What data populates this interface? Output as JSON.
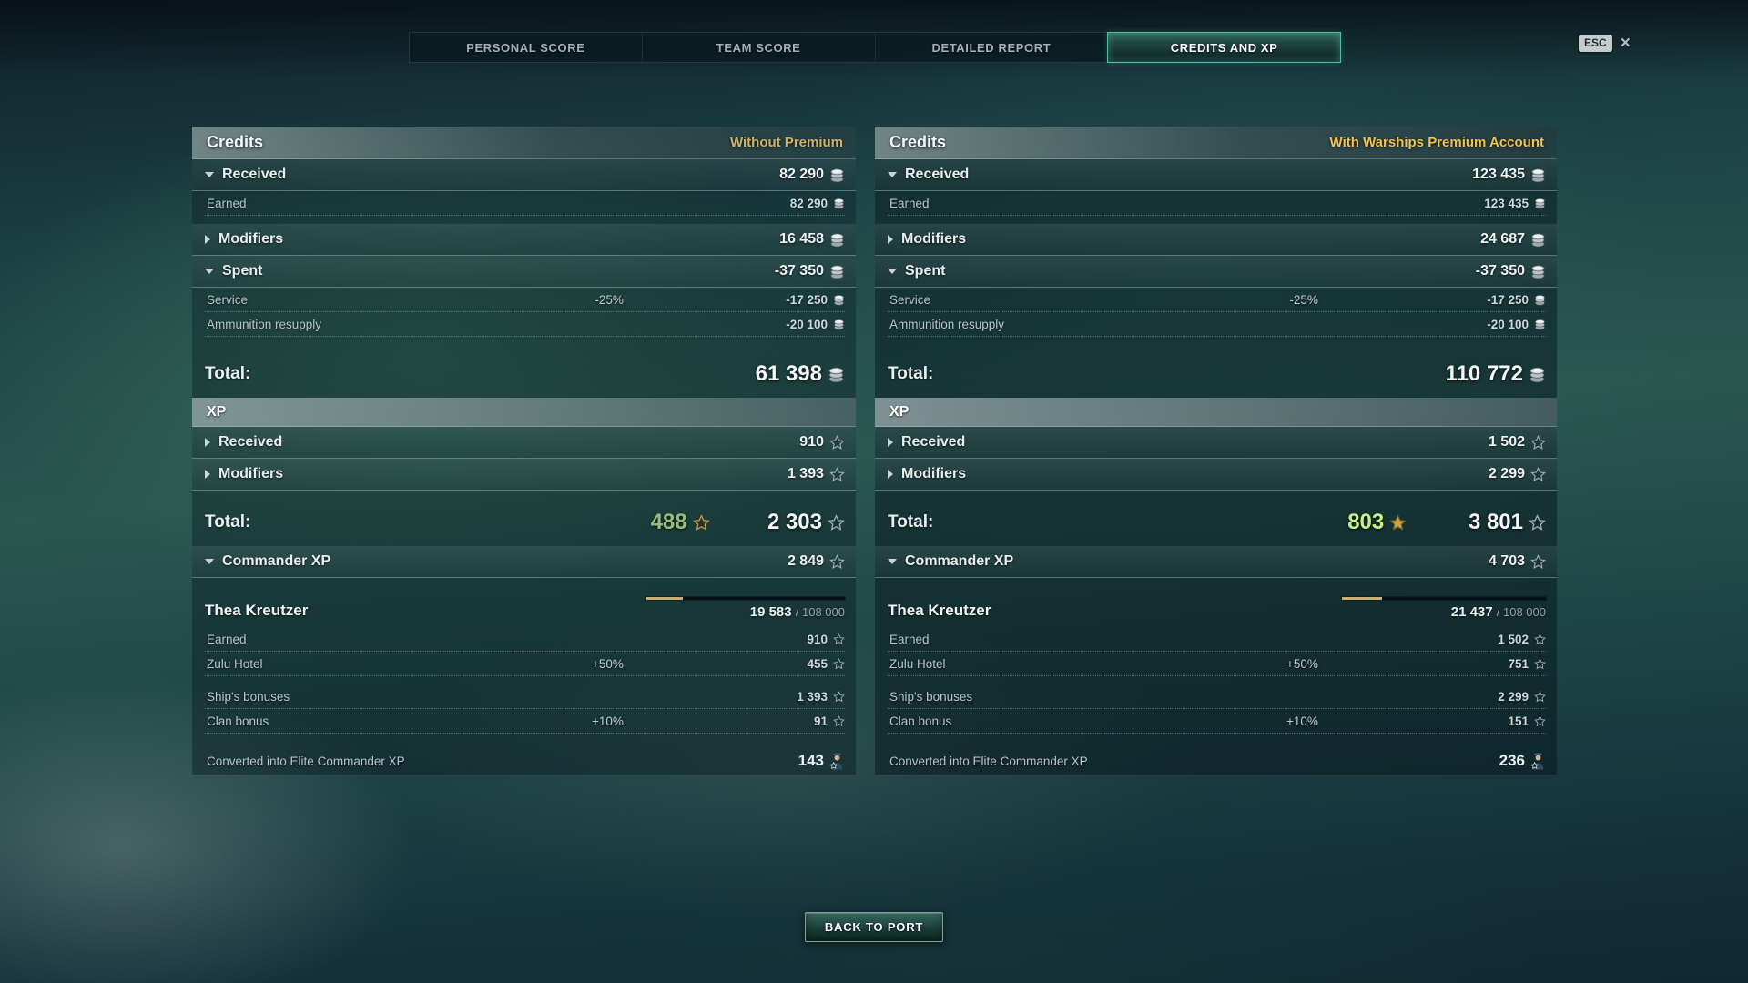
{
  "window": {
    "esc_label": "ESC",
    "close_label": "×"
  },
  "tab_bar": {
    "tabs": [
      {
        "label": "PERSONAL SCORE",
        "active": false
      },
      {
        "label": "TEAM SCORE",
        "active": false
      },
      {
        "label": "DETAILED REPORT",
        "active": false
      },
      {
        "label": "CREDITS AND XP",
        "active": true
      }
    ]
  },
  "back_button": {
    "label": "BACK TO PORT"
  },
  "colors": {
    "accent_teal": "#55bb9c",
    "premium_gold_muted": "#cfb468",
    "premium_gold_bright": "#f2c24d",
    "xp_bonus_green_left": "#9abc7f",
    "xp_bonus_green_right": "#c9ef85",
    "progress_gold": "#c8b273"
  },
  "panels": [
    {
      "name": "without-premium",
      "header": {
        "title": "Credits",
        "subtitle": "Without Premium",
        "subtitle_color": "#cfb468"
      },
      "rows": [
        {
          "type": "section",
          "arrow": "down",
          "label": "Received",
          "value": "82 290",
          "icon": "credits"
        },
        {
          "type": "sub",
          "label": "Earned",
          "value": "82 290",
          "icon": "credits"
        },
        {
          "type": "gap",
          "size": "sm"
        },
        {
          "type": "section",
          "arrow": "right",
          "label": "Modifiers",
          "value": "16 458",
          "icon": "credits"
        },
        {
          "type": "section",
          "arrow": "down",
          "label": "Spent",
          "value": "-37 350",
          "icon": "credits"
        },
        {
          "type": "sub",
          "label": "Service",
          "percent": "-25%",
          "value": "-17 250",
          "icon": "credits"
        },
        {
          "type": "sub",
          "label": "Ammunition resupply",
          "value": "-20 100",
          "icon": "credits"
        },
        {
          "type": "gap",
          "size": "md"
        },
        {
          "type": "total",
          "label": "Total:",
          "value": "61 398",
          "icon": "credits"
        },
        {
          "type": "xp_header",
          "label": "XP"
        },
        {
          "type": "section",
          "arrow": "right",
          "label": "Received",
          "value": "910",
          "icon": "star"
        },
        {
          "type": "section",
          "arrow": "right",
          "label": "Modifiers",
          "value": "1 393",
          "icon": "star"
        },
        {
          "type": "gap",
          "size": "sm"
        },
        {
          "type": "total",
          "label": "Total:",
          "bonus": "488",
          "bonus_star": "outline",
          "bonus_color": "#9abc7f",
          "value": "2 303",
          "icon": "star"
        },
        {
          "type": "section",
          "arrow": "down",
          "label": "Commander XP",
          "value": "2 849",
          "icon": "star"
        },
        {
          "type": "commander",
          "name": "Thea Kreutzer",
          "current": "19 583",
          "divider": "/",
          "max": "108 000",
          "percent": 18.1
        },
        {
          "type": "sub",
          "label": "Earned",
          "value": "910",
          "icon": "star"
        },
        {
          "type": "sub",
          "label": "Zulu Hotel",
          "percent": "+50%",
          "value": "455",
          "icon": "star"
        },
        {
          "type": "gap",
          "size": "sm"
        },
        {
          "type": "sub",
          "label": "Ship's bonuses",
          "value": "1 393",
          "icon": "star"
        },
        {
          "type": "sub",
          "label": "Clan bonus",
          "percent": "+10%",
          "value": "91",
          "icon": "star"
        },
        {
          "type": "gap",
          "size": "md"
        },
        {
          "type": "converted",
          "label": "Converted into Elite Commander XP",
          "value": "143",
          "icon": "commander"
        }
      ]
    },
    {
      "name": "with-premium",
      "header": {
        "title": "Credits",
        "subtitle": "With Warships Premium Account",
        "subtitle_color": "#f2c24d"
      },
      "rows": [
        {
          "type": "section",
          "arrow": "down",
          "label": "Received",
          "value": "123 435",
          "icon": "credits"
        },
        {
          "type": "sub",
          "label": "Earned",
          "value": "123 435",
          "icon": "credits"
        },
        {
          "type": "gap",
          "size": "sm"
        },
        {
          "type": "section",
          "arrow": "right",
          "label": "Modifiers",
          "value": "24 687",
          "icon": "credits"
        },
        {
          "type": "section",
          "arrow": "down",
          "label": "Spent",
          "value": "-37 350",
          "icon": "credits"
        },
        {
          "type": "sub",
          "label": "Service",
          "percent": "-25%",
          "value": "-17 250",
          "icon": "credits"
        },
        {
          "type": "sub",
          "label": "Ammunition resupply",
          "value": "-20 100",
          "icon": "credits"
        },
        {
          "type": "gap",
          "size": "md"
        },
        {
          "type": "total",
          "label": "Total:",
          "value": "110 772",
          "icon": "credits"
        },
        {
          "type": "xp_header",
          "label": "XP"
        },
        {
          "type": "section",
          "arrow": "right",
          "label": "Received",
          "value": "1 502",
          "icon": "star"
        },
        {
          "type": "section",
          "arrow": "right",
          "label": "Modifiers",
          "value": "2 299",
          "icon": "star"
        },
        {
          "type": "gap",
          "size": "sm"
        },
        {
          "type": "total",
          "label": "Total:",
          "bonus": "803",
          "bonus_star": "filled",
          "bonus_color": "#c9ef85",
          "value": "3 801",
          "icon": "star"
        },
        {
          "type": "section",
          "arrow": "down",
          "label": "Commander XP",
          "value": "4 703",
          "icon": "star"
        },
        {
          "type": "commander",
          "name": "Thea Kreutzer",
          "current": "21 437",
          "divider": "/",
          "max": "108 000",
          "percent": 19.8
        },
        {
          "type": "sub",
          "label": "Earned",
          "value": "1 502",
          "icon": "star"
        },
        {
          "type": "sub",
          "label": "Zulu Hotel",
          "percent": "+50%",
          "value": "751",
          "icon": "star"
        },
        {
          "type": "gap",
          "size": "sm"
        },
        {
          "type": "sub",
          "label": "Ship's bonuses",
          "value": "2 299",
          "icon": "star"
        },
        {
          "type": "sub",
          "label": "Clan bonus",
          "percent": "+10%",
          "value": "151",
          "icon": "star"
        },
        {
          "type": "gap",
          "size": "md"
        },
        {
          "type": "converted",
          "label": "Converted into Elite Commander XP",
          "value": "236",
          "icon": "commander"
        }
      ]
    }
  ]
}
